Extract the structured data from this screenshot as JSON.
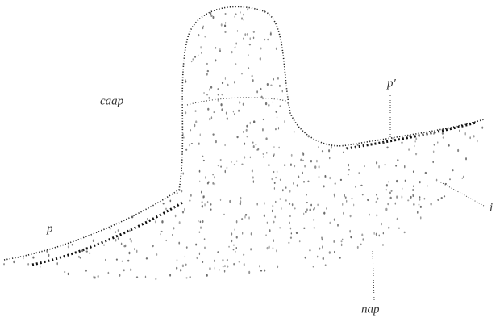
{
  "labels": [
    "caap",
    "p′",
    "p",
    "i",
    "nap"
  ]
}
